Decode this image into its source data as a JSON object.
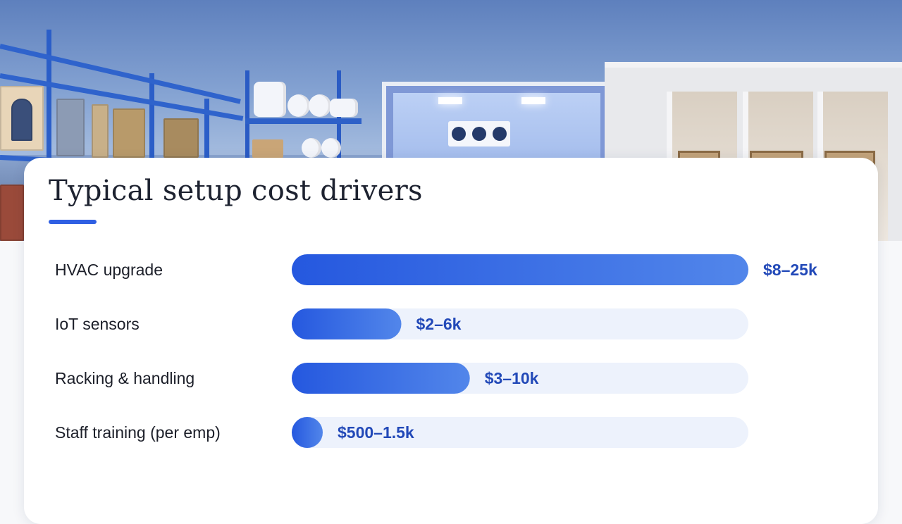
{
  "slide": {
    "title": "Typical setup cost drivers",
    "accent_color": "#2f5fe3",
    "track_color": "#edf2fc",
    "hero_image": "warehouse-and-cold-storage-photo"
  },
  "chart_data": {
    "type": "bar",
    "orientation": "horizontal",
    "title": "Typical setup cost drivers",
    "categories": [
      "HVAC upgrade",
      "IoT sensors",
      "Racking & handling",
      "Staff training (per emp)"
    ],
    "value_labels": [
      "$8–25k",
      "$2–6k",
      "$3–10k",
      "$500–1.5k"
    ],
    "ranges": [
      [
        8000,
        25000
      ],
      [
        2000,
        6000
      ],
      [
        3000,
        10000
      ],
      [
        500,
        1500
      ]
    ],
    "bar_fill_fraction": [
      1.0,
      0.24,
      0.39,
      0.06
    ],
    "legend": "none",
    "grid": false
  }
}
